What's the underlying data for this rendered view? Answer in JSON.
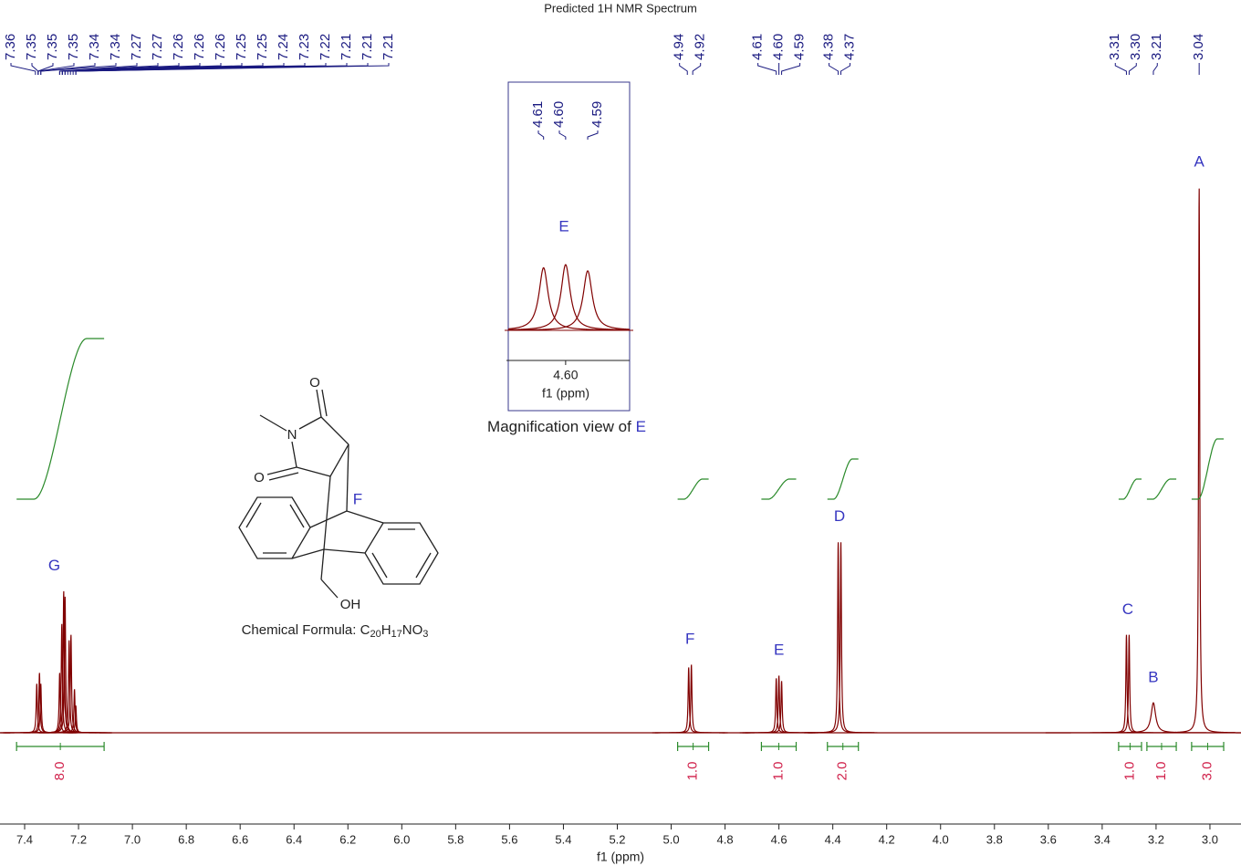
{
  "chart_data": {
    "type": "nmr",
    "title": "Predicted 1H NMR Spectrum",
    "x_label": "f1 (ppm)",
    "xlim": [
      7.4915,
      2.8847
    ],
    "xticks": [
      7.4,
      7.2,
      {
        "value": 7,
        "label": "7.0"
      },
      6.8,
      6.6,
      6.4,
      6.2,
      {
        "value": 6,
        "label": "6.0"
      },
      5.8,
      5.6,
      5.4,
      5.2,
      {
        "value": 5,
        "label": "5.0"
      },
      4.8,
      4.6,
      4.4,
      4.2,
      {
        "value": 4,
        "label": "4.0"
      },
      3.8,
      3.6,
      3.4,
      3.2,
      {
        "value": 3,
        "label": "3.0"
      }
    ],
    "color": "#800000",
    "integral_color": "#2a8a2a",
    "linewidth": 0.0025,
    "peaks": [
      {
        "ppm": 7.355,
        "height": 0.09
      },
      {
        "ppm": 7.345,
        "height": 0.11
      },
      {
        "ppm": 7.34,
        "height": 0.09
      },
      {
        "ppm": 7.27,
        "height": 0.11
      },
      {
        "ppm": 7.262,
        "height": 0.2
      },
      {
        "ppm": 7.255,
        "height": 0.26
      },
      {
        "ppm": 7.25,
        "height": 0.25
      },
      {
        "ppm": 7.235,
        "height": 0.17
      },
      {
        "ppm": 7.228,
        "height": 0.18
      },
      {
        "ppm": 7.215,
        "height": 0.08
      },
      {
        "ppm": 7.21,
        "height": 0.05
      },
      {
        "ppm": 4.935,
        "height": 0.12
      },
      {
        "ppm": 4.925,
        "height": 0.125
      },
      {
        "ppm": 4.61,
        "height": 0.1
      },
      {
        "ppm": 4.6,
        "height": 0.105
      },
      {
        "ppm": 4.59,
        "height": 0.095
      },
      {
        "ppm": 4.38,
        "height": 0.35
      },
      {
        "ppm": 4.37,
        "height": 0.35
      },
      {
        "ppm": 3.31,
        "height": 0.18
      },
      {
        "ppm": 3.3,
        "height": 0.18
      },
      {
        "ppm": 3.21,
        "height": 0.055,
        "width": 0.01
      },
      {
        "ppm": 3.04,
        "height": 1
      }
    ],
    "peak_labels": [
      7.36,
      7.35,
      7.35,
      7.35,
      7.34,
      7.34,
      7.27,
      7.27,
      7.26,
      7.26,
      7.26,
      7.25,
      7.25,
      7.24,
      7.23,
      7.22,
      7.21,
      7.21,
      7.21,
      4.94,
      4.92,
      4.61,
      {
        "value": 4.6,
        "label": "4.60"
      },
      4.59,
      4.38,
      4.37,
      3.31,
      {
        "value": 3.3,
        "label": "3.30"
      },
      3.21,
      3.04
    ],
    "assignments": [
      {
        "label": "G",
        "ppm": 7.29
      },
      {
        "label": "F",
        "ppm": 4.93
      },
      {
        "label": "E",
        "ppm": 4.6
      },
      {
        "label": "D",
        "ppm": 4.375
      },
      {
        "label": "C",
        "ppm": 3.305
      },
      {
        "label": "B",
        "ppm": 3.21
      },
      {
        "label": "A",
        "ppm": 3.04
      }
    ],
    "integrals": [
      {
        "value": 8,
        "label": "8.0",
        "range": [
          7.43,
          7.105
        ]
      },
      {
        "value": 1,
        "label": "1.0",
        "range": [
          4.976,
          4.861
        ]
      },
      {
        "value": 1,
        "label": "1.0",
        "range": [
          4.665,
          4.536
        ]
      },
      {
        "value": 2,
        "label": "2.0",
        "range": [
          4.42,
          4.305
        ]
      },
      {
        "value": 1,
        "label": "1.0",
        "range": [
          3.339,
          3.254
        ]
      },
      {
        "value": 1,
        "label": "1.0",
        "range": [
          3.234,
          3.125
        ]
      },
      {
        "value": 3,
        "label": "3.0",
        "range": [
          3.068,
          2.949
        ]
      }
    ],
    "inset": {
      "caption": "Magnification view of",
      "caption_label": "E",
      "xlim": [
        4.626,
        4.571
      ],
      "xticks": [
        {
          "value": 4.6,
          "label": "4.60"
        }
      ],
      "x_label": "f1 (ppm)",
      "peak_labels": [
        4.61,
        {
          "value": 4.6,
          "label": "4.60"
        },
        4.59
      ]
    }
  },
  "molecule": {
    "atoms": [
      "O",
      "N",
      "O",
      "F",
      "OH"
    ],
    "formula_label": "Chemical Formula:",
    "formula": [
      "C",
      "20",
      "H",
      "17",
      "NO",
      "3"
    ]
  }
}
